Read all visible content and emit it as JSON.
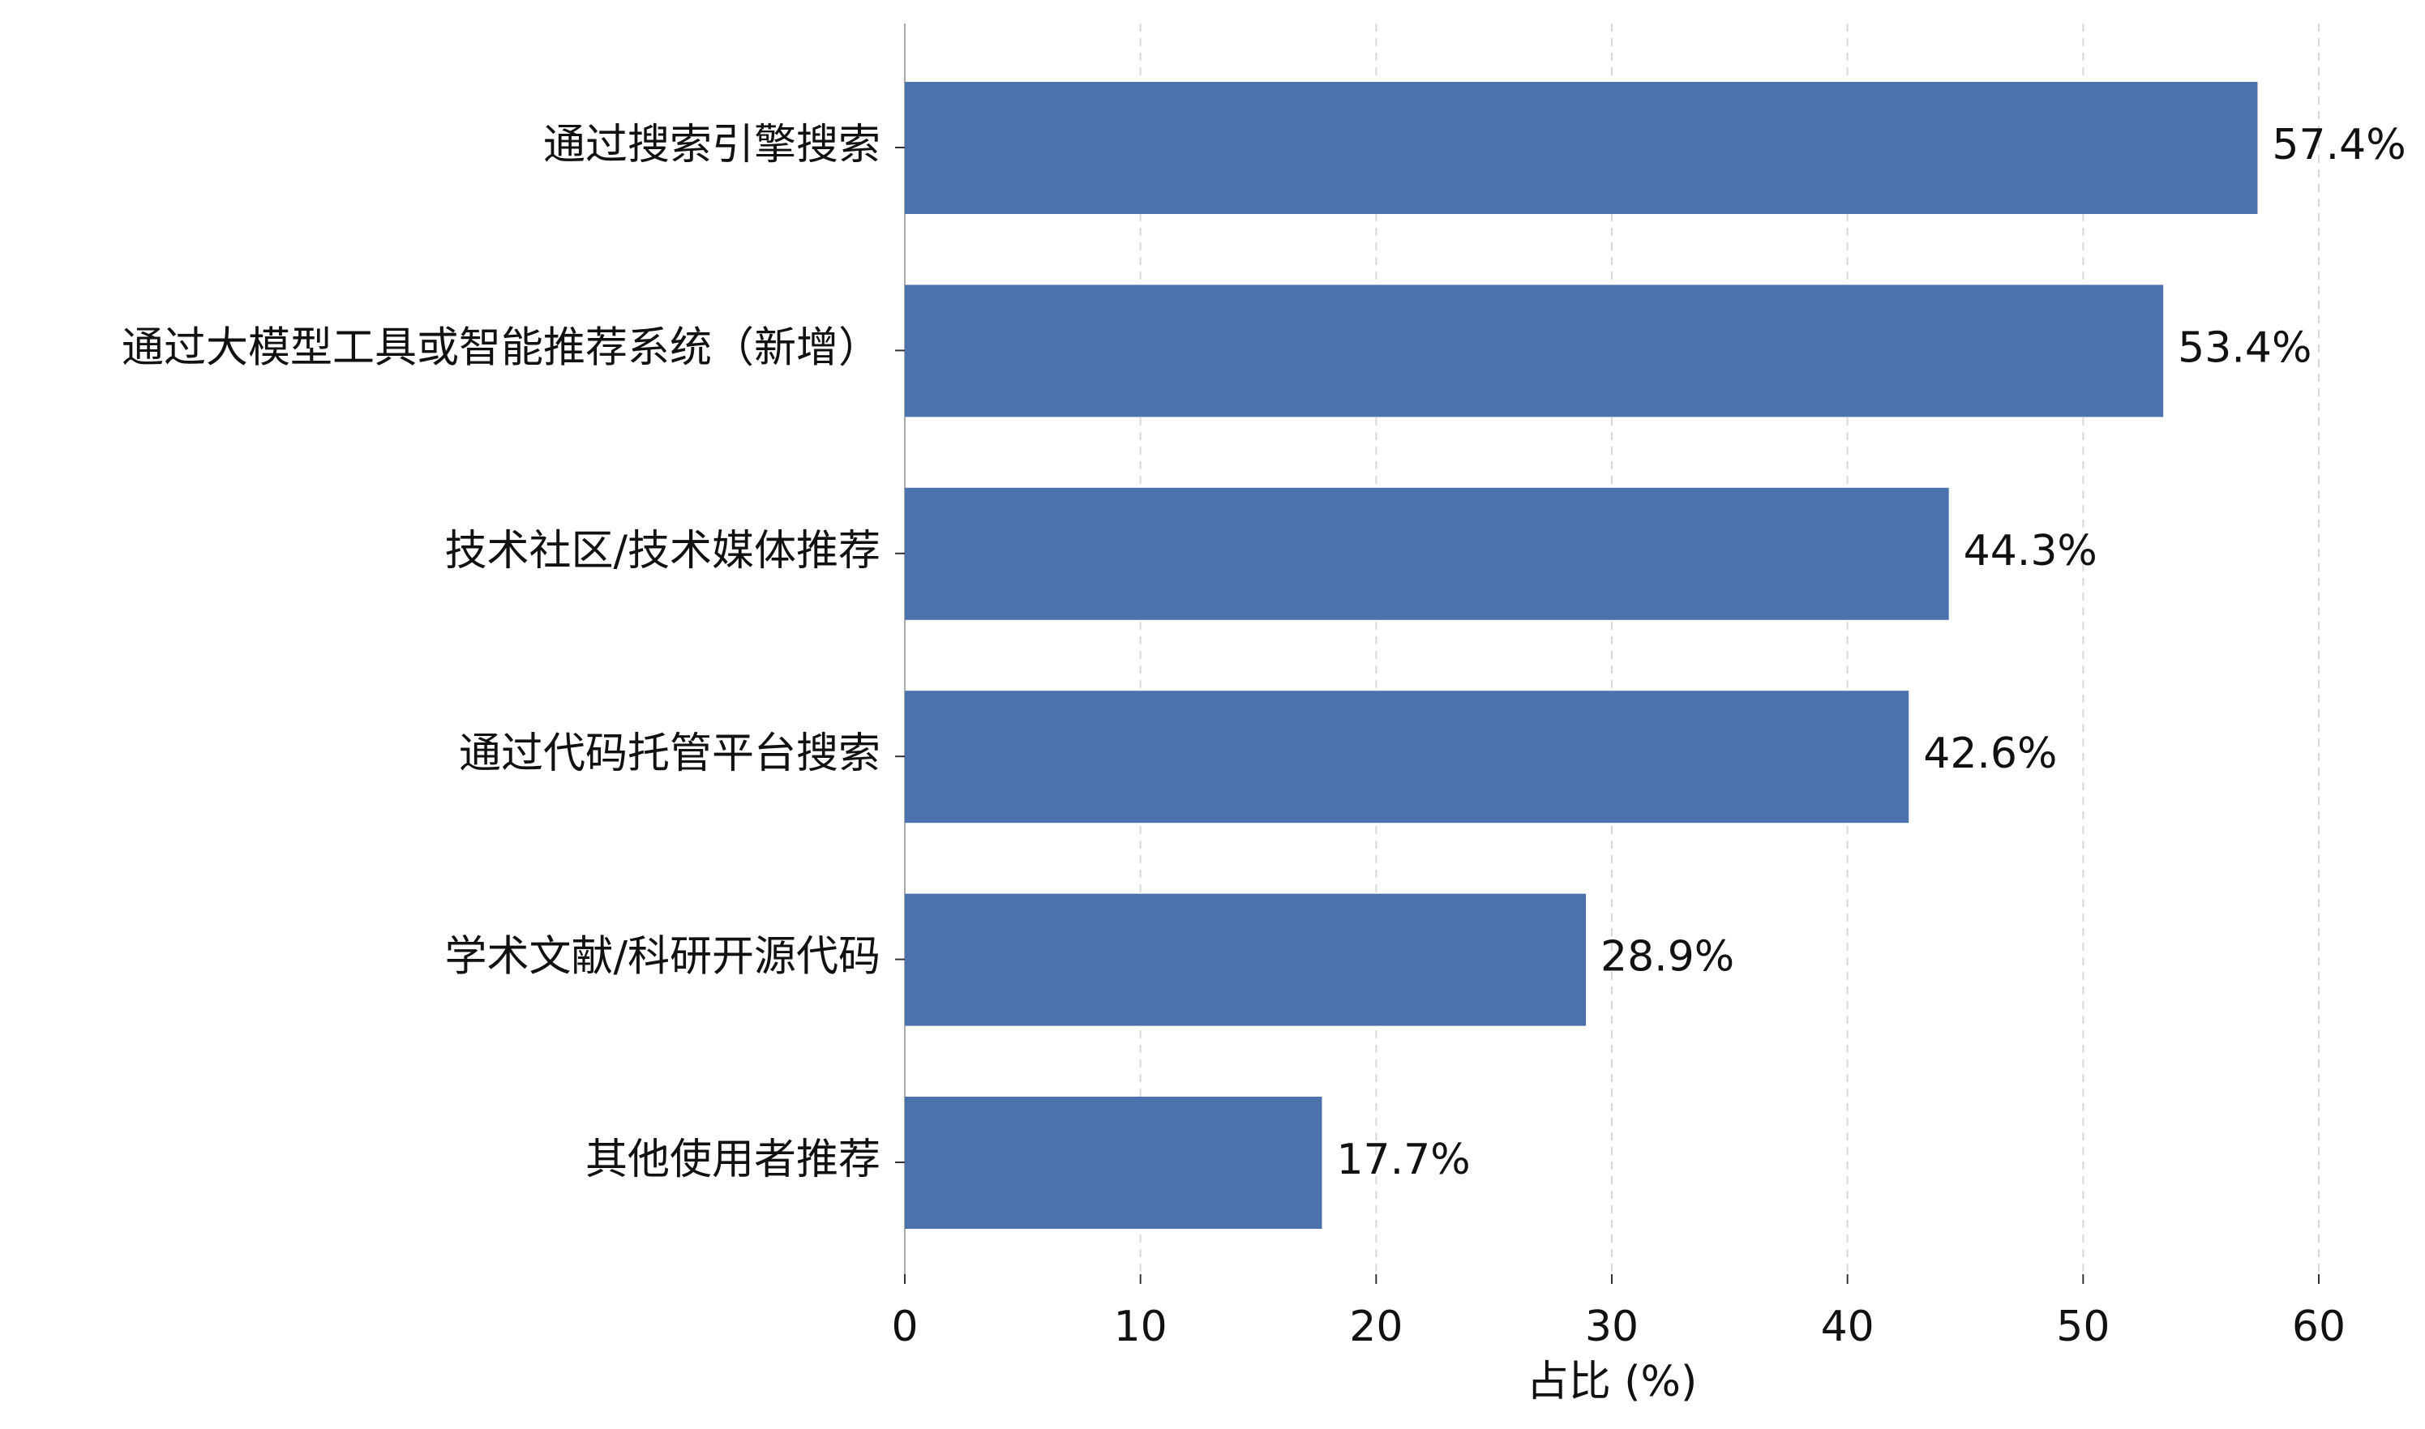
{
  "chart_data": {
    "type": "bar",
    "orientation": "horizontal",
    "xlabel": "占比 (%)",
    "categories": [
      "通过搜索引擎搜索",
      "通过大模型工具或智能推荐系统（新增）",
      "技术社区/技术媒体推荐",
      "通过代码托管平台搜索",
      "学术文献/科研开源代码",
      "其他使用者推荐"
    ],
    "values": [
      57.4,
      53.4,
      44.3,
      42.6,
      28.9,
      17.7
    ],
    "value_labels": [
      "57.4%",
      "53.4%",
      "44.3%",
      "42.6%",
      "28.9%",
      "17.7%"
    ],
    "color": "#4c72ad",
    "xlim": [
      0,
      60
    ],
    "xticks": [
      0,
      10,
      20,
      30,
      40,
      50,
      60
    ],
    "grid": true
  }
}
